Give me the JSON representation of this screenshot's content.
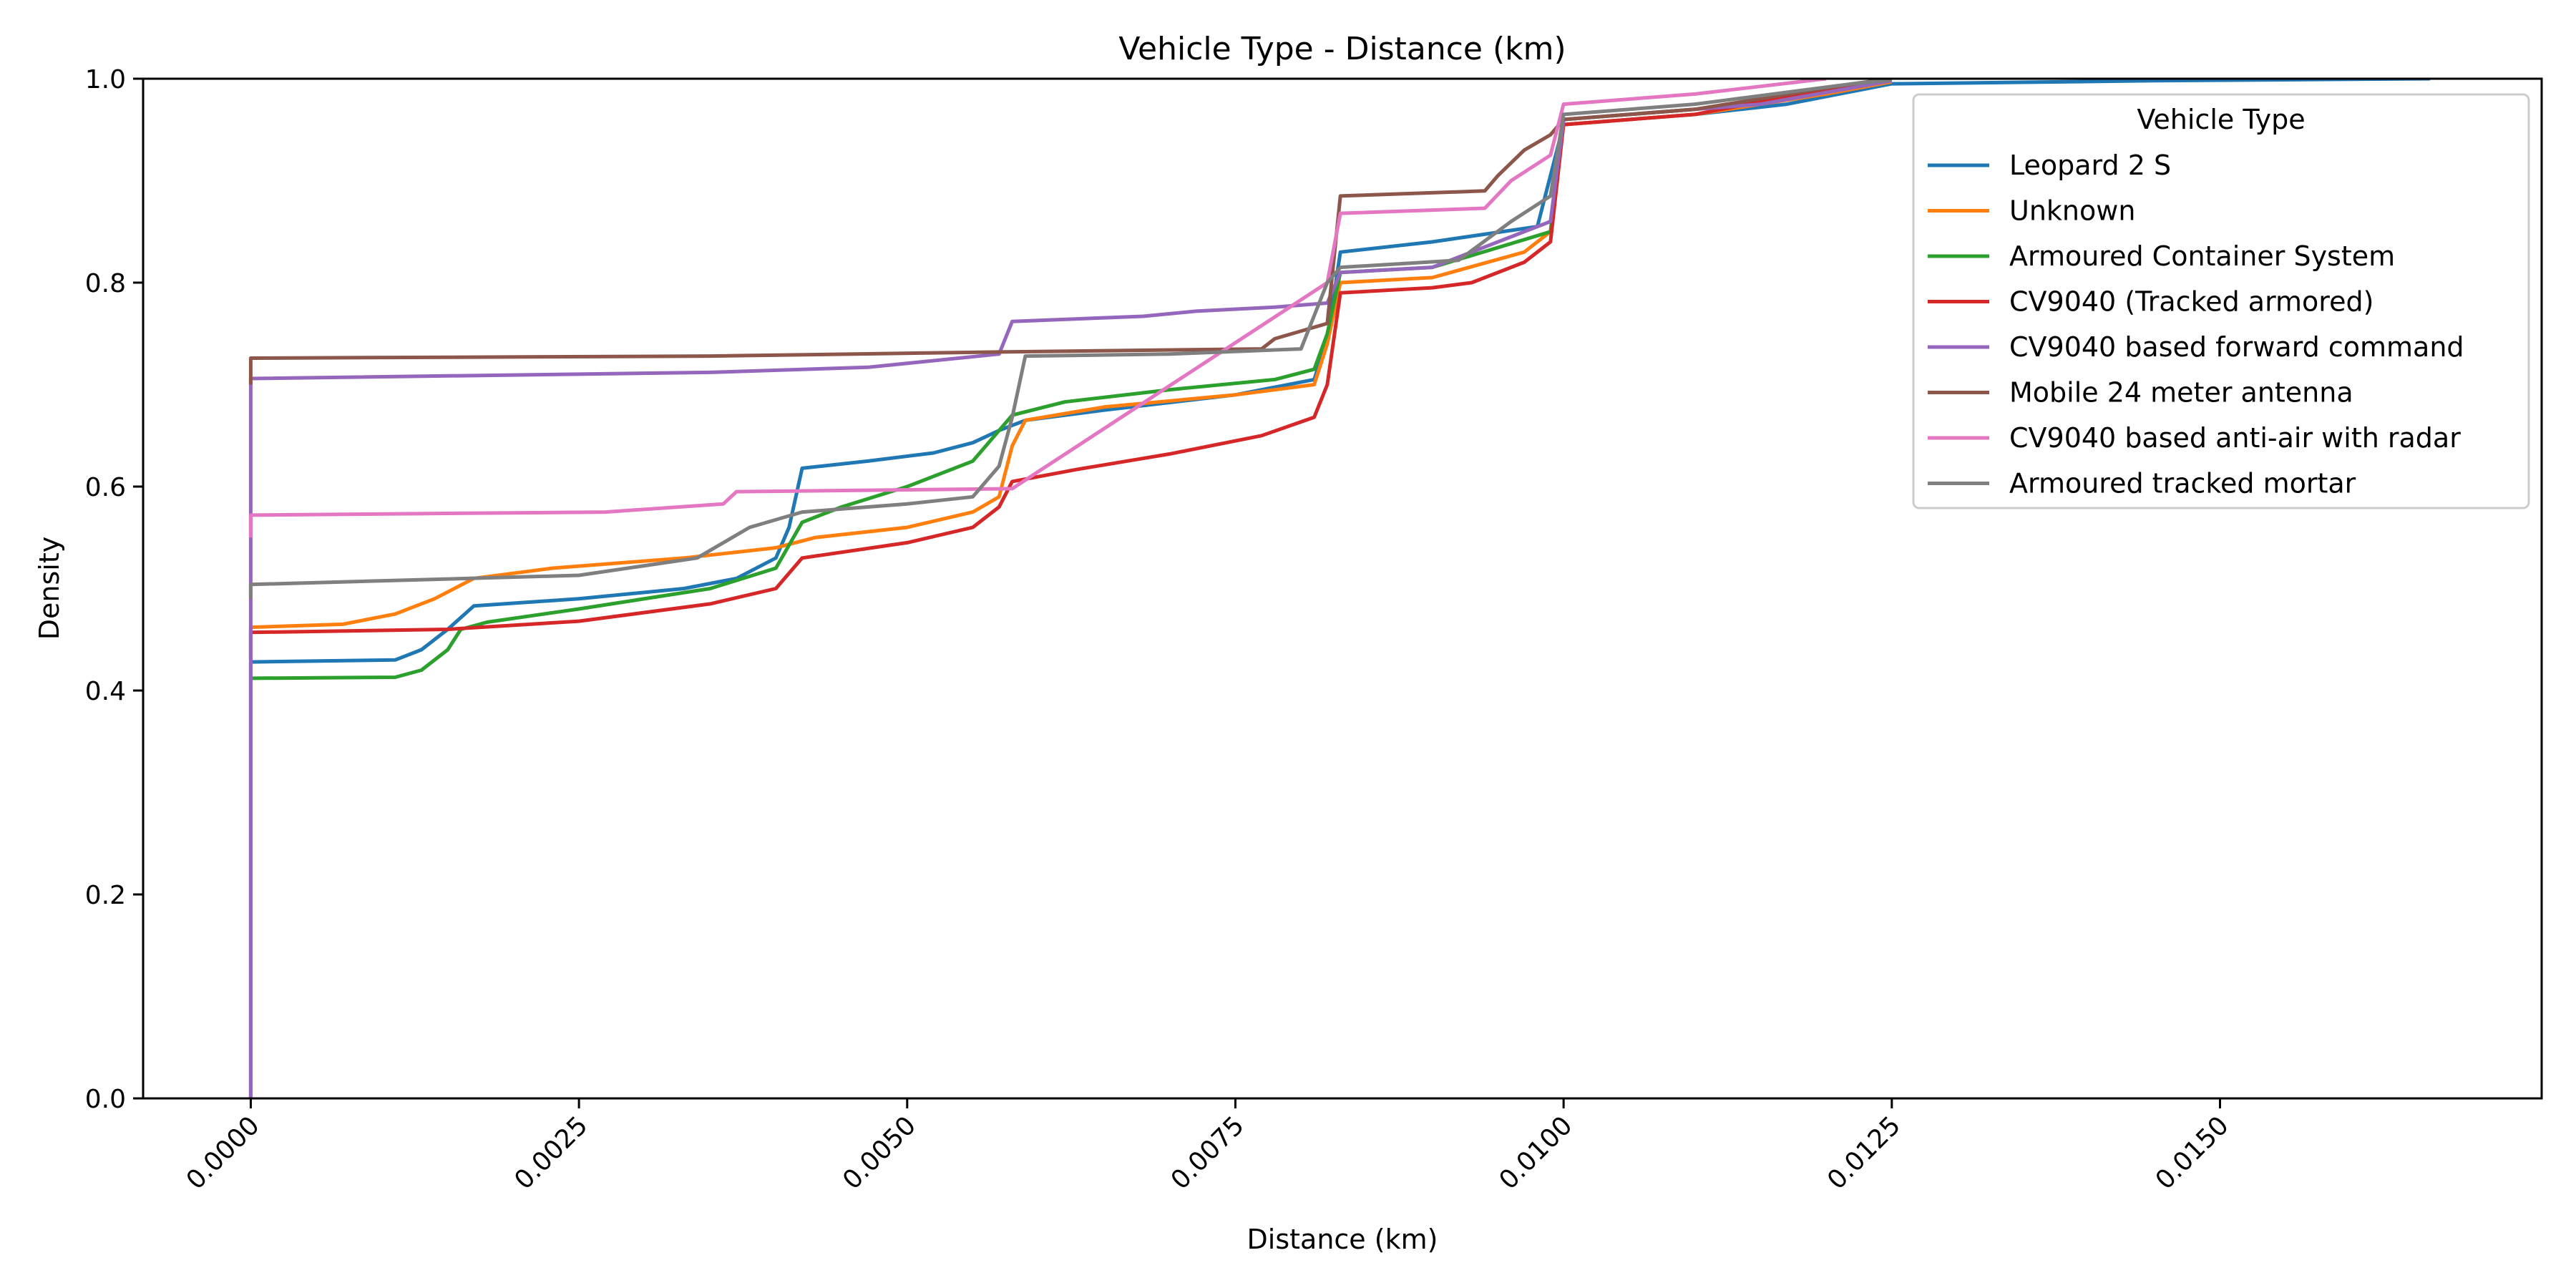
{
  "chart_data": {
    "type": "line",
    "title": "Vehicle Type - Distance (km)",
    "xlabel": "Distance (km)",
    "ylabel": "Density",
    "xlim": [
      -0.00082,
      0.01745
    ],
    "ylim": [
      0.0,
      1.0
    ],
    "xticks": [
      0.0,
      0.0025,
      0.005,
      0.0075,
      0.01,
      0.0125,
      0.015
    ],
    "xtick_labels": [
      "0.0000",
      "0.0025",
      "0.0050",
      "0.0075",
      "0.0100",
      "0.0125",
      "0.0150"
    ],
    "yticks": [
      0.0,
      0.2,
      0.4,
      0.6,
      0.8,
      1.0
    ],
    "ytick_labels": [
      "0.0",
      "0.2",
      "0.4",
      "0.6",
      "0.8",
      "1.0"
    ],
    "grid": false,
    "legend": {
      "title": "Vehicle Type",
      "placement": "top-right"
    },
    "series": [
      {
        "name": "Leopard 2 S",
        "color": "#1f77b4",
        "points": [
          [
            0,
            0
          ],
          [
            0,
            0.428
          ],
          [
            0.0011,
            0.43
          ],
          [
            0.0013,
            0.44
          ],
          [
            0.0015,
            0.46
          ],
          [
            0.0017,
            0.483
          ],
          [
            0.0025,
            0.49
          ],
          [
            0.0033,
            0.5
          ],
          [
            0.0037,
            0.51
          ],
          [
            0.004,
            0.53
          ],
          [
            0.0041,
            0.56
          ],
          [
            0.0042,
            0.618
          ],
          [
            0.0047,
            0.625
          ],
          [
            0.0052,
            0.633
          ],
          [
            0.0055,
            0.643
          ],
          [
            0.0057,
            0.655
          ],
          [
            0.0059,
            0.665
          ],
          [
            0.0065,
            0.675
          ],
          [
            0.0075,
            0.69
          ],
          [
            0.0081,
            0.705
          ],
          [
            0.0082,
            0.745
          ],
          [
            0.0083,
            0.83
          ],
          [
            0.009,
            0.84
          ],
          [
            0.0098,
            0.855
          ],
          [
            0.01,
            0.955
          ],
          [
            0.011,
            0.965
          ],
          [
            0.0117,
            0.975
          ],
          [
            0.0125,
            0.995
          ],
          [
            0.0145,
            0.998
          ],
          [
            0.0166,
            1.0
          ]
        ]
      },
      {
        "name": "Unknown",
        "color": "#ff7f0e",
        "points": [
          [
            0,
            0.43
          ],
          [
            0,
            0.462
          ],
          [
            0.0007,
            0.465
          ],
          [
            0.0011,
            0.475
          ],
          [
            0.0014,
            0.49
          ],
          [
            0.0017,
            0.51
          ],
          [
            0.0023,
            0.52
          ],
          [
            0.0033,
            0.53
          ],
          [
            0.004,
            0.54
          ],
          [
            0.0043,
            0.55
          ],
          [
            0.005,
            0.56
          ],
          [
            0.0055,
            0.575
          ],
          [
            0.0057,
            0.59
          ],
          [
            0.0058,
            0.64
          ],
          [
            0.0059,
            0.665
          ],
          [
            0.0065,
            0.678
          ],
          [
            0.0075,
            0.69
          ],
          [
            0.0081,
            0.7
          ],
          [
            0.0082,
            0.74
          ],
          [
            0.0083,
            0.8
          ],
          [
            0.009,
            0.805
          ],
          [
            0.0097,
            0.83
          ],
          [
            0.0099,
            0.85
          ],
          [
            0.01,
            0.955
          ],
          [
            0.011,
            0.965
          ],
          [
            0.012,
            0.985
          ],
          [
            0.0125,
            0.997
          ]
        ]
      },
      {
        "name": "Armoured Container System",
        "color": "#2ca02c",
        "points": [
          [
            0,
            0.412
          ],
          [
            0.0011,
            0.413
          ],
          [
            0.0013,
            0.42
          ],
          [
            0.0015,
            0.44
          ],
          [
            0.0016,
            0.46
          ],
          [
            0.0018,
            0.467
          ],
          [
            0.0025,
            0.48
          ],
          [
            0.0035,
            0.5
          ],
          [
            0.004,
            0.52
          ],
          [
            0.0042,
            0.565
          ],
          [
            0.0045,
            0.58
          ],
          [
            0.005,
            0.6
          ],
          [
            0.0055,
            0.625
          ],
          [
            0.0058,
            0.67
          ],
          [
            0.0062,
            0.683
          ],
          [
            0.007,
            0.695
          ],
          [
            0.0078,
            0.705
          ],
          [
            0.0081,
            0.715
          ],
          [
            0.0082,
            0.75
          ],
          [
            0.0083,
            0.81
          ],
          [
            0.009,
            0.815
          ],
          [
            0.0099,
            0.85
          ],
          [
            0.01,
            0.96
          ],
          [
            0.011,
            0.97
          ],
          [
            0.012,
            0.99
          ],
          [
            0.0125,
            0.998
          ]
        ]
      },
      {
        "name": "CV9040 (Tracked armored)",
        "color": "#d62728",
        "points": [
          [
            0,
            0.43
          ],
          [
            0,
            0.457
          ],
          [
            0.0015,
            0.46
          ],
          [
            0.0025,
            0.468
          ],
          [
            0.0035,
            0.485
          ],
          [
            0.004,
            0.5
          ],
          [
            0.0042,
            0.53
          ],
          [
            0.005,
            0.545
          ],
          [
            0.0055,
            0.56
          ],
          [
            0.0057,
            0.58
          ],
          [
            0.0058,
            0.605
          ],
          [
            0.0063,
            0.617
          ],
          [
            0.007,
            0.632
          ],
          [
            0.0077,
            0.65
          ],
          [
            0.0081,
            0.668
          ],
          [
            0.0082,
            0.7
          ],
          [
            0.0083,
            0.79
          ],
          [
            0.009,
            0.795
          ],
          [
            0.0093,
            0.8
          ],
          [
            0.0097,
            0.82
          ],
          [
            0.0099,
            0.84
          ],
          [
            0.01,
            0.955
          ],
          [
            0.011,
            0.965
          ],
          [
            0.012,
            0.99
          ],
          [
            0.0125,
            0.998
          ]
        ]
      },
      {
        "name": "CV9040 based forward command",
        "color": "#9467bd",
        "points": [
          [
            0,
            0
          ],
          [
            0,
            0.706
          ],
          [
            0.0035,
            0.712
          ],
          [
            0.0047,
            0.717
          ],
          [
            0.0057,
            0.73
          ],
          [
            0.0058,
            0.762
          ],
          [
            0.0068,
            0.767
          ],
          [
            0.0072,
            0.772
          ],
          [
            0.0078,
            0.776
          ],
          [
            0.0082,
            0.78
          ],
          [
            0.0083,
            0.81
          ],
          [
            0.009,
            0.815
          ],
          [
            0.0099,
            0.86
          ],
          [
            0.01,
            0.96
          ],
          [
            0.0115,
            0.975
          ],
          [
            0.0125,
            0.998
          ]
        ]
      },
      {
        "name": "Mobile 24 meter antenna",
        "color": "#8c564b",
        "points": [
          [
            0,
            0.7
          ],
          [
            0,
            0.726
          ],
          [
            0.0035,
            0.728
          ],
          [
            0.0057,
            0.732
          ],
          [
            0.0077,
            0.735
          ],
          [
            0.0078,
            0.745
          ],
          [
            0.0082,
            0.76
          ],
          [
            0.0083,
            0.885
          ],
          [
            0.0094,
            0.89
          ],
          [
            0.0095,
            0.905
          ],
          [
            0.0097,
            0.93
          ],
          [
            0.0099,
            0.945
          ],
          [
            0.01,
            0.96
          ],
          [
            0.011,
            0.97
          ],
          [
            0.0122,
            0.995
          ],
          [
            0.0125,
            1.0
          ]
        ]
      },
      {
        "name": "CV9040 based anti-air with radar",
        "color": "#e377c2",
        "points": [
          [
            0,
            0.55
          ],
          [
            0,
            0.572
          ],
          [
            0.0027,
            0.575
          ],
          [
            0.0036,
            0.583
          ],
          [
            0.0037,
            0.595
          ],
          [
            0.0058,
            0.598
          ],
          [
            0.0082,
            0.8
          ],
          [
            0.0083,
            0.868
          ],
          [
            0.0094,
            0.873
          ],
          [
            0.0096,
            0.9
          ],
          [
            0.0099,
            0.925
          ],
          [
            0.01,
            0.975
          ],
          [
            0.011,
            0.985
          ],
          [
            0.012,
            1.0
          ]
        ]
      },
      {
        "name": "Armoured tracked mortar",
        "color": "#7f7f7f",
        "points": [
          [
            0,
            0.49
          ],
          [
            0,
            0.504
          ],
          [
            0.0025,
            0.513
          ],
          [
            0.0034,
            0.53
          ],
          [
            0.0038,
            0.56
          ],
          [
            0.0042,
            0.575
          ],
          [
            0.005,
            0.583
          ],
          [
            0.0055,
            0.59
          ],
          [
            0.0057,
            0.62
          ],
          [
            0.0058,
            0.668
          ],
          [
            0.0059,
            0.728
          ],
          [
            0.007,
            0.73
          ],
          [
            0.008,
            0.735
          ],
          [
            0.0082,
            0.8
          ],
          [
            0.0083,
            0.815
          ],
          [
            0.0092,
            0.822
          ],
          [
            0.0096,
            0.86
          ],
          [
            0.0099,
            0.885
          ],
          [
            0.01,
            0.965
          ],
          [
            0.011,
            0.975
          ],
          [
            0.0122,
            0.995
          ],
          [
            0.0125,
            0.999
          ]
        ]
      }
    ]
  }
}
